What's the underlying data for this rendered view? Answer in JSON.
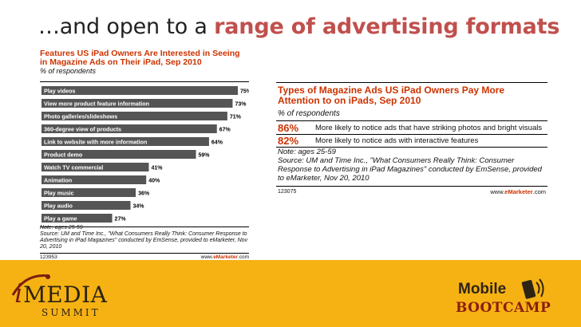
{
  "headline": {
    "prefix": "…and open to a ",
    "accent": "range of advertising formats"
  },
  "chart_data": [
    {
      "type": "bar",
      "title": "Features US iPad Owners Are Interested in Seeing in Magazine Ads on Their iPad, Sep 2010",
      "subtitle": "% of respondents",
      "categories": [
        "Play videos",
        "View more product feature information",
        "Photo galleries/slideshows",
        "360-degree view of products",
        "Link to website with more information",
        "Product demo",
        "Watch TV commercial",
        "Animation",
        "Play music",
        "Play audio",
        "Play a game"
      ],
      "values": [
        75,
        73,
        71,
        67,
        64,
        59,
        41,
        40,
        36,
        34,
        27
      ],
      "value_suffix": "%",
      "xlim": [
        0,
        80
      ],
      "bar_color": "#555555",
      "note": "Note: ages 25-59",
      "source": "Source: UM and Time Inc., \"What Consumers Really Think: Consumer Response to Advertising in iPad Magazines\" conducted by EmSense, provided to eMarketer, Nov 20, 2010",
      "id": "123953",
      "website_prefix": "www.",
      "website_brand": "eMarketer",
      "website_suffix": ".com"
    },
    {
      "type": "table",
      "title": "Types of Magazine Ads US iPad Owners Pay More Attention to on iPads, Sep 2010",
      "subtitle": "% of respondents",
      "rows": [
        {
          "value": 86,
          "label": "86%",
          "text": "More likely to notice ads that have striking photos and bright visuals"
        },
        {
          "value": 82,
          "label": "82%",
          "text": "More likely to notice ads with interactive features"
        }
      ],
      "note": "Note: ages 25-59",
      "source": "Source: UM and Time Inc., \"What Consumers Really Think: Consumer Response to Advertising in iPad Magazines\" conducted by EmSense, provided to eMarketer, Nov 20, 2010",
      "id": "123075",
      "website_prefix": "www.",
      "website_brand": "eMarketer",
      "website_suffix": ".com"
    }
  ],
  "logos": {
    "imedia": {
      "i": "i",
      "word": "MEDIA",
      "sub": "SUMMIT"
    },
    "bootcamp": {
      "line1": "Mobile",
      "line2": "BOOTCAMP"
    }
  },
  "colors": {
    "accent": "#c0504d",
    "chart_title": "#cc3300",
    "band": "#f6b213",
    "bar": "#555555"
  }
}
